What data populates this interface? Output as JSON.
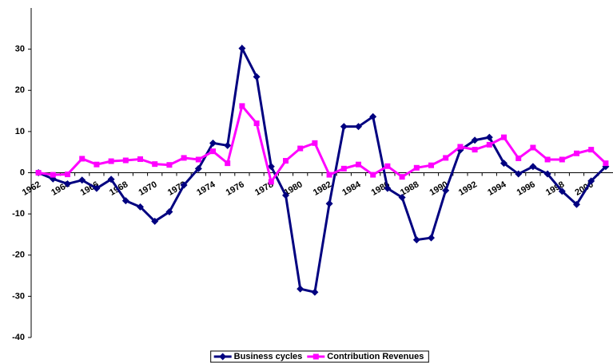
{
  "chart_data": {
    "type": "line",
    "categories": [
      "1962",
      null,
      "1964",
      null,
      "1966",
      null,
      "1968",
      null,
      "1970",
      null,
      "1972",
      null,
      "1974",
      null,
      "1976",
      null,
      "1978",
      null,
      "1980",
      null,
      "1982",
      null,
      "1984",
      null,
      "1986",
      null,
      "1988",
      null,
      "1990",
      null,
      "1992",
      null,
      "1994",
      null,
      "1996",
      null,
      "1998",
      null,
      "2000",
      null
    ],
    "series": [
      {
        "name": "Business cycles",
        "color": "#000080",
        "marker": "diamond",
        "values": [
          0,
          -1.5,
          -2.7,
          -1.8,
          -3.8,
          -1.6,
          -6.8,
          -8.3,
          -11.8,
          -9.5,
          -3.0,
          1.0,
          7.2,
          6.6,
          30.2,
          23.3,
          1.5,
          -5.5,
          -28.2,
          -29.0,
          -7.5,
          11.2,
          11.2,
          13.6,
          -3.8,
          -6.0,
          -16.3,
          -15.8,
          -4.3,
          5.5,
          7.9,
          8.6,
          2.3,
          -0.3,
          1.5,
          -0.3,
          -4.5,
          -7.7,
          -2.0,
          1.5
        ]
      },
      {
        "name": "Contribution Revenues",
        "color": "#ff00ff",
        "marker": "square",
        "values": [
          0,
          -0.5,
          -0.4,
          3.4,
          2.0,
          2.8,
          3.0,
          3.3,
          2.1,
          1.9,
          3.6,
          3.2,
          5.2,
          2.3,
          16.2,
          12.0,
          -2.2,
          2.9,
          5.9,
          7.2,
          -0.5,
          1.0,
          2.0,
          -0.5,
          1.6,
          -1.0,
          1.2,
          1.8,
          3.6,
          6.3,
          5.6,
          6.8,
          8.6,
          3.5,
          6.1,
          3.2,
          3.2,
          4.7,
          5.6,
          2.3
        ]
      }
    ],
    "ylim": [
      -40,
      40
    ],
    "yticks": [
      -40,
      -30,
      -20,
      -10,
      0,
      10,
      20,
      30
    ],
    "grid": false,
    "legend": "bottom"
  }
}
